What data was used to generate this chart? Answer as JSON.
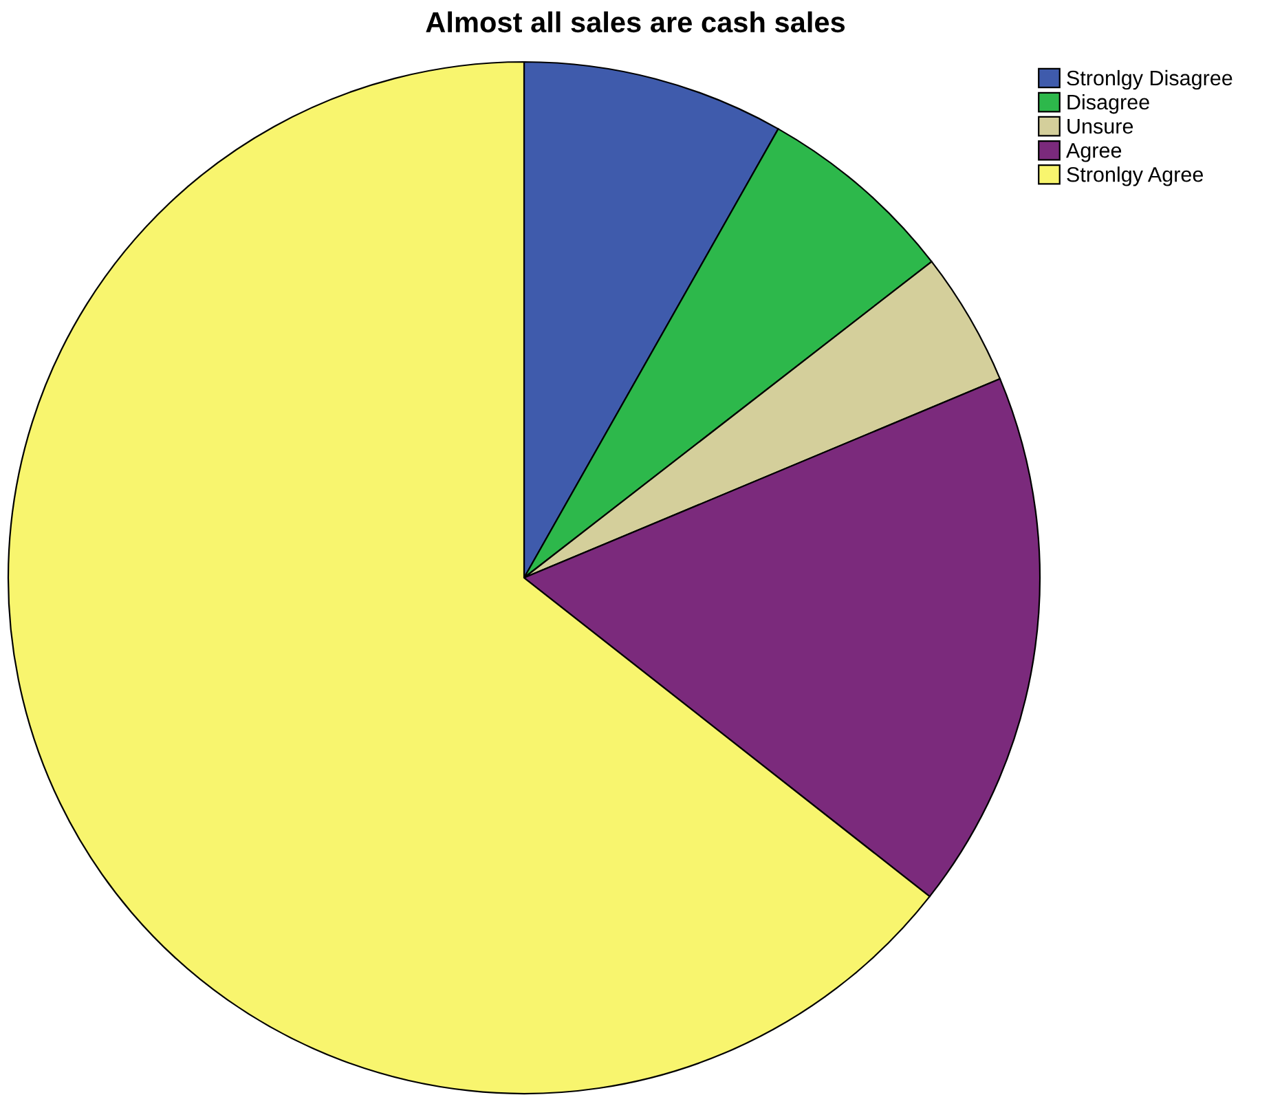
{
  "chart_data": {
    "type": "pie",
    "title": "Almost all sales are cash sales",
    "categories": [
      "Stronlgy Disagree",
      "Disagree",
      "Unsure",
      "Agree",
      "Stronlgy Agree"
    ],
    "values": [
      8.2,
      6.3,
      4.2,
      16.9,
      64.4
    ],
    "colors": [
      "#3f5bac",
      "#2db84b",
      "#d4cf9b",
      "#7b2a7c",
      "#f8f56e"
    ],
    "legend": "top right"
  }
}
